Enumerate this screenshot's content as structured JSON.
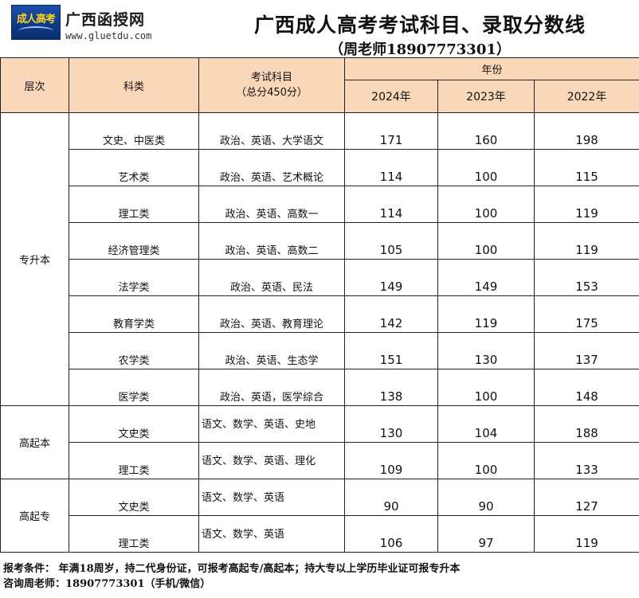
{
  "header": {
    "logo_text": "成人高考",
    "site_name": "广西函授网",
    "site_url": "www.gluetdu.com",
    "title": "广西成人高考考试科目、录取分数线",
    "subtitle": "（周老师18907773301）"
  },
  "table": {
    "col_level": "层次",
    "col_category": "科类",
    "col_subject_line1": "考试科目",
    "col_subject_line2": "（总分450分）",
    "col_year_group": "年份",
    "years": [
      "2024年",
      "2023年",
      "2022年"
    ],
    "groups": [
      {
        "level": "专升本",
        "rows": [
          {
            "category": "文史、中医类",
            "subjects": "政治、英语、大学语文",
            "scores": [
              "171",
              "160",
              "198"
            ]
          },
          {
            "category": "艺术类",
            "subjects": "政治、英语、艺术概论",
            "scores": [
              "114",
              "100",
              "115"
            ]
          },
          {
            "category": "理工类",
            "subjects": "政治、英语、高数一",
            "scores": [
              "114",
              "100",
              "119"
            ]
          },
          {
            "category": "经济管理类",
            "subjects": "政治、英语、高数二",
            "scores": [
              "105",
              "100",
              "119"
            ]
          },
          {
            "category": "法学类",
            "subjects": "政治、英语、民法",
            "scores": [
              "149",
              "149",
              "153"
            ]
          },
          {
            "category": "教育学类",
            "subjects": "政治、英语、教育理论",
            "scores": [
              "142",
              "119",
              "175"
            ]
          },
          {
            "category": "农学类",
            "subjects": "政治、英语、生态学",
            "scores": [
              "151",
              "130",
              "137"
            ]
          },
          {
            "category": "医学类",
            "subjects": "政治、英语，医学综合",
            "scores": [
              "138",
              "100",
              "148"
            ]
          }
        ]
      },
      {
        "level": "高起本",
        "rows": [
          {
            "category": "文史类",
            "subjects": "语文、数学、英语、史地",
            "scores": [
              "130",
              "104",
              "188"
            ]
          },
          {
            "category": "理工类",
            "subjects": "语文、数学、英语、理化",
            "scores": [
              "109",
              "100",
              "133"
            ]
          }
        ]
      },
      {
        "level": "高起专",
        "rows": [
          {
            "category": "文史类",
            "subjects": "语文、数学、英语",
            "scores": [
              "90",
              "90",
              "127"
            ]
          },
          {
            "category": "理工类",
            "subjects": "语文、数学、英语",
            "scores": [
              "106",
              "97",
              "119"
            ]
          }
        ]
      }
    ]
  },
  "footer": {
    "line1": "报考条件： 年满18周岁，持二代身份证，可报考高起专/高起本；持大专以上学历毕业证可报专升本",
    "line2": "咨询周老师：18907773301（手机/微信）"
  },
  "colors": {
    "header_bg": "#fad7b8",
    "logo_bg": "#0d3a88",
    "logo_text": "#ffd21f"
  }
}
